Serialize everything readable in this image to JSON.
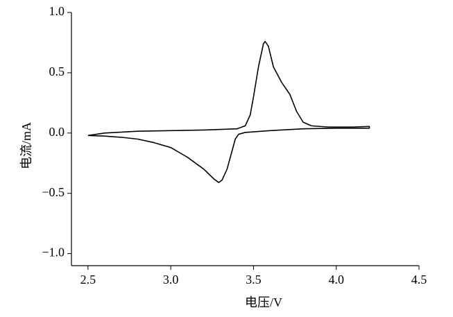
{
  "chart_data": {
    "type": "line",
    "x_label": "电压/V",
    "y_label": "电流/mA",
    "x": [
      2.5,
      2.6,
      2.8,
      3.0,
      3.2,
      3.4,
      3.45,
      3.48,
      3.5,
      3.53,
      3.56,
      3.57,
      3.59,
      3.62,
      3.67,
      3.72,
      3.76,
      3.8,
      3.85,
      3.95,
      4.1,
      4.2,
      4.2,
      4.0,
      3.8,
      3.6,
      3.45,
      3.41,
      3.39,
      3.37,
      3.34,
      3.31,
      3.29,
      3.26,
      3.2,
      3.1,
      3.0,
      2.9,
      2.8,
      2.7,
      2.6,
      2.5
    ],
    "values": [
      -0.02,
      0.0,
      0.015,
      0.02,
      0.025,
      0.035,
      0.06,
      0.15,
      0.3,
      0.55,
      0.74,
      0.76,
      0.72,
      0.55,
      0.42,
      0.32,
      0.18,
      0.09,
      0.06,
      0.05,
      0.05,
      0.055,
      0.04,
      0.04,
      0.035,
      0.02,
      0.005,
      -0.01,
      -0.05,
      -0.15,
      -0.3,
      -0.39,
      -0.41,
      -0.38,
      -0.3,
      -0.2,
      -0.12,
      -0.08,
      -0.05,
      -0.035,
      -0.025,
      -0.02
    ],
    "color": "#000000",
    "xlim": [
      2.4,
      4.5
    ],
    "ylim": [
      -1.1,
      1.0
    ],
    "xticks": [
      2.5,
      {
        "value": 3,
        "label": "3.0"
      },
      3.5,
      {
        "value": 4,
        "label": "4.0"
      },
      4.5
    ],
    "yticks": [
      {
        "value": 1,
        "label": "1.0"
      },
      0.5,
      {
        "value": 0,
        "label": "0.0"
      },
      {
        "value": -0.5,
        "label": "−0.5"
      },
      {
        "value": -1,
        "label": "−1.0"
      }
    ],
    "grid": false
  }
}
